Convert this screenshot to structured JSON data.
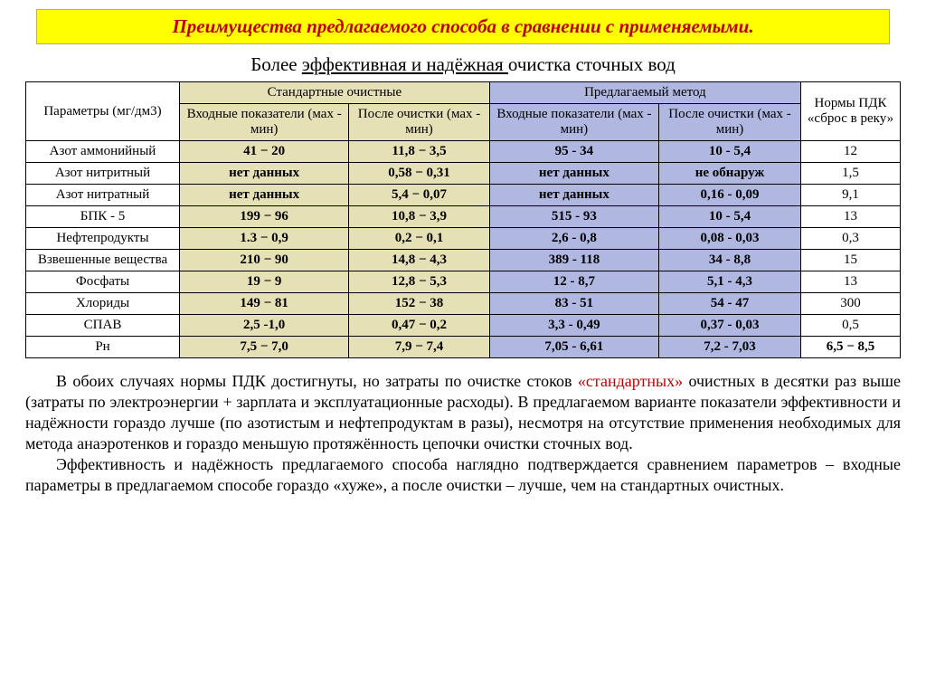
{
  "title": "Преимущества предлагаемого способа в сравнении с применяемыми.",
  "subtitle_prefix": "Более ",
  "subtitle_underlined": "эффективная и надёжная ",
  "subtitle_rest": "очистка сточных вод",
  "headers": {
    "params": "Параметры (мг/дм3)",
    "std": "Стандартные очистные",
    "prop": "Предлагаемый метод",
    "norms": "Нормы ПДК «сброс в реку»",
    "input": "Входные показатели (мах - мин)",
    "after": "После очистки (мах -  мин)"
  },
  "rows": [
    {
      "p": "Азот аммонийный",
      "s1": "41 − 20",
      "s2": "11,8 − 3,5",
      "p1": "95   -   34",
      "p2": "10   -   5,4",
      "n": "12"
    },
    {
      "p": "Азот нитритный",
      "s1": "нет данных",
      "s2": "0,58 − 0,31",
      "p1": "нет данных",
      "p2": "не обнаруж",
      "n": "1,5"
    },
    {
      "p": "Азот нитратный",
      "s1": "нет данных",
      "s2": "5,4 − 0,07",
      "p1": "нет данных",
      "p2": "0,16   -   0,09",
      "n": "9,1"
    },
    {
      "p": "БПК - 5",
      "s1": "199 − 96",
      "s2": "10,8 − 3,9",
      "p1": "515   -   93",
      "p2": "10   -   5,4",
      "n": "13"
    },
    {
      "p": "Нефтепродукты",
      "s1": "1.3 − 0,9",
      "s2": "0,2 − 0,1",
      "p1": "2,6   -   0,8",
      "p2": "0,08   -  0,03",
      "n": "0,3"
    },
    {
      "p": "Взвешенные вещества",
      "s1": "210 − 90",
      "s2": "14,8 − 4,3",
      "p1": "389   -  118",
      "p2": "34   -   8,8",
      "n": "15"
    },
    {
      "p": "Фосфаты",
      "s1": "19 − 9",
      "s2": "12,8 − 5,3",
      "p1": "12   -   8,7",
      "p2": "5,1   -   4,3",
      "n": "13"
    },
    {
      "p": "Хлориды",
      "s1": "149 − 81",
      "s2": "152 − 38",
      "p1": "83   -   51",
      "p2": "54   -   47",
      "n": "300"
    },
    {
      "p": "СПАВ",
      "s1": "2,5 -1,0",
      "s2": "0,47 − 0,2",
      "p1": "3,3   -   0,49",
      "p2": "0,37   -  0,03",
      "n": "0,5"
    },
    {
      "p": "Рн",
      "s1": "7,5 − 7,0",
      "s2": "7,9 − 7,4",
      "p1": "7,05   -   6,61",
      "p2": "7,2   -  7,03",
      "n": "6,5 − 8,5"
    }
  ],
  "para1_a": "В обоих случаях нормы ПДК достигнуты, но затраты по очистке стоков ",
  "para1_red": "«стандартных»",
  "para1_b": " очистных в десятки раз выше (затраты по электроэнергии + зарплата и эксплуатационные расходы). В предлагаемом варианте показатели эффективности и надёжности гораздо лучше (по азотистым и нефтепродуктам в разы), несмотря на отсутствие применения необходимых для метода анаэротенков и гораздо меньшую протяжённость цепочки очистки сточных вод.",
  "para2": "Эффективность и надёжность предлагаемого способа наглядно подтверждается сравнением параметров – входные параметры в предлагаемом способе гораздо «хуже», а после очистки – лучше, чем на стандартных очистных.",
  "colors": {
    "title_bg": "#ffff00",
    "title_text": "#c00000",
    "std_bg": "#e6e0b6",
    "prop_bg": "#b0b7e0",
    "page_bg": "#ffffff",
    "border": "#000000"
  }
}
